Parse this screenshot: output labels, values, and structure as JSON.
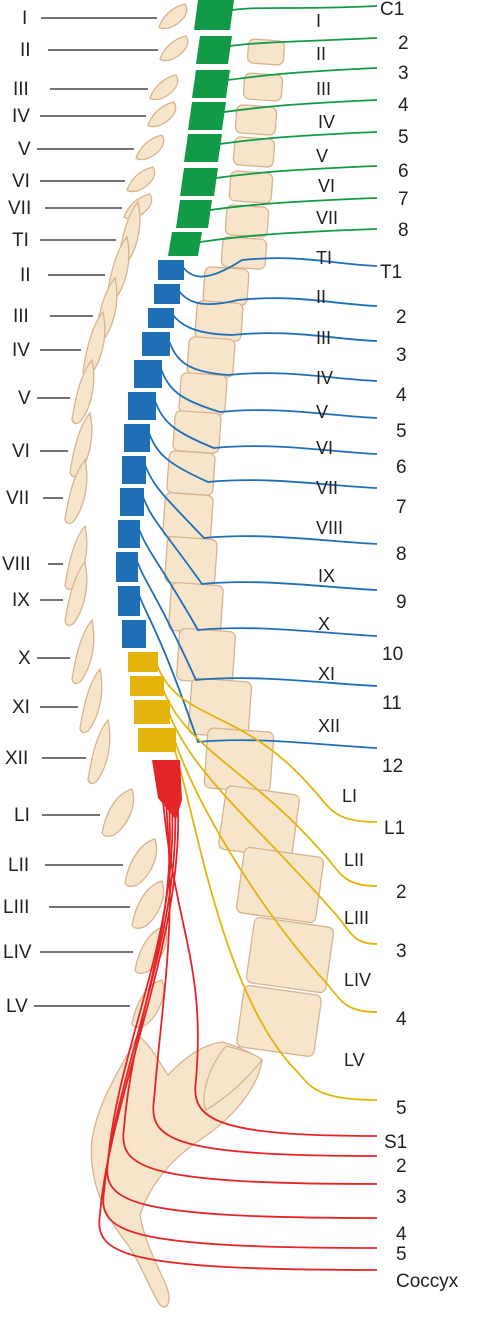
{
  "colors": {
    "cervical": "#129a47",
    "thoracic": "#1f6fb7",
    "lumbar": "#e2b40c",
    "sacral": "#e42528",
    "bone_fill": "#f6e4cb",
    "bone_stroke": "#d7b48e",
    "text": "#231f20"
  },
  "left_labels": [
    "I",
    "II",
    "III",
    "IV",
    "V",
    "VI",
    "VII",
    "TI",
    "II",
    "III",
    "IV",
    "V",
    "VI",
    "VII",
    "VIII",
    "IX",
    "X",
    "XI",
    "XII",
    "LI",
    "LII",
    "LIII",
    "LIV",
    "LV"
  ],
  "vertebra_labels": [
    "I",
    "II",
    "III",
    "IV",
    "V",
    "VI",
    "VII",
    "TI",
    "II",
    "III",
    "IV",
    "V",
    "VI",
    "VII",
    "VIII",
    "IX",
    "X",
    "XI",
    "XII",
    "LI",
    "LII",
    "LIII",
    "LIV",
    "LV"
  ],
  "nerves": {
    "cervical": [
      "C1",
      "2",
      "3",
      "4",
      "5",
      "6",
      "7",
      "8"
    ],
    "thoracic": [
      "T1",
      "2",
      "3",
      "4",
      "5",
      "6",
      "7",
      "8",
      "9",
      "10",
      "11",
      "12"
    ],
    "lumbar": [
      "L1",
      "2",
      "3",
      "4",
      "5"
    ],
    "sacral": [
      "S1",
      "2",
      "3",
      "4",
      "5",
      "Coccyx"
    ]
  }
}
